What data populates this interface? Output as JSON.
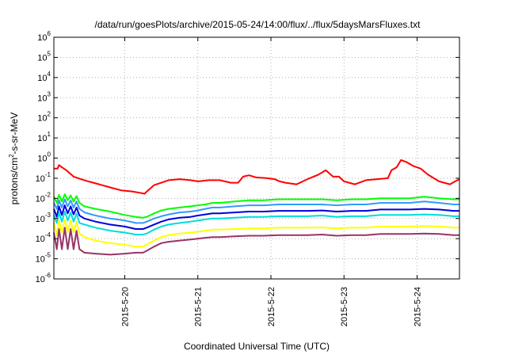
{
  "chart_data": {
    "type": "line",
    "title": "/data/run/goesPlots/archive/2015-05-24/14:00/flux/../flux/5daysMarsFluxes.txt",
    "xlabel": "Coordinated Universal Time (UTC)",
    "ylabel": "protons/cm²-s-sr-MeV",
    "ylabel_parts": {
      "pre": "protons/cm",
      "sup": "2",
      "post": "-s-sr-MeV"
    },
    "yscale": "log",
    "ylim": [
      1e-06,
      1000000.0
    ],
    "yticks": [
      {
        "base": "10",
        "exp": "6"
      },
      {
        "base": "10",
        "exp": "5"
      },
      {
        "base": "10",
        "exp": "4"
      },
      {
        "base": "10",
        "exp": "3"
      },
      {
        "base": "10",
        "exp": "2"
      },
      {
        "base": "10",
        "exp": "1"
      },
      {
        "base": "10",
        "exp": "0"
      },
      {
        "base": "10",
        "exp": "-1"
      },
      {
        "base": "10",
        "exp": "-2"
      },
      {
        "base": "10",
        "exp": "-3"
      },
      {
        "base": "10",
        "exp": "-4"
      },
      {
        "base": "10",
        "exp": "-5"
      },
      {
        "base": "10",
        "exp": "-6"
      }
    ],
    "xlim": [
      -0.97,
      4.58
    ],
    "xticks": [
      {
        "value": 0,
        "label": "2015-5-20"
      },
      {
        "value": 1,
        "label": "2015-5-21"
      },
      {
        "value": 2,
        "label": "2015-5-22"
      },
      {
        "value": 3,
        "label": "2015-5-23"
      },
      {
        "value": 4,
        "label": "2015-5-24"
      }
    ],
    "grid": true,
    "series": [
      {
        "color": "#ff0000",
        "x": [
          -0.97,
          -0.92,
          -0.9,
          -0.86,
          -0.8,
          -0.7,
          -0.6,
          -0.5,
          -0.35,
          -0.2,
          -0.05,
          0.1,
          0.2,
          0.27,
          0.32,
          0.4,
          0.5,
          0.6,
          0.75,
          0.9,
          1.0,
          1.15,
          1.3,
          1.45,
          1.55,
          1.62,
          1.7,
          1.8,
          1.95,
          2.05,
          2.12,
          2.2,
          2.35,
          2.5,
          2.65,
          2.75,
          2.85,
          2.93,
          3.0,
          3.15,
          3.3,
          3.45,
          3.6,
          3.65,
          3.72,
          3.78,
          3.85,
          3.95,
          4.05,
          4.15,
          4.3,
          4.45,
          4.52,
          4.58
        ],
        "y": [
          0.3,
          0.3,
          0.45,
          0.35,
          0.25,
          0.12,
          0.09,
          0.07,
          0.05,
          0.035,
          0.025,
          0.022,
          0.019,
          0.017,
          0.025,
          0.045,
          0.06,
          0.08,
          0.09,
          0.08,
          0.07,
          0.08,
          0.08,
          0.06,
          0.06,
          0.12,
          0.14,
          0.11,
          0.1,
          0.09,
          0.07,
          0.06,
          0.05,
          0.09,
          0.15,
          0.25,
          0.12,
          0.12,
          0.07,
          0.05,
          0.08,
          0.09,
          0.1,
          0.25,
          0.35,
          0.8,
          0.65,
          0.4,
          0.3,
          0.15,
          0.07,
          0.05,
          0.07,
          0.09
        ]
      },
      {
        "color": "#00ff00",
        "x": [
          -0.97,
          -0.93,
          -0.9,
          -0.86,
          -0.82,
          -0.78,
          -0.74,
          -0.7,
          -0.66,
          -0.62,
          -0.55,
          -0.4,
          -0.2,
          0.0,
          0.15,
          0.25,
          0.3,
          0.4,
          0.5,
          0.6,
          0.75,
          0.9,
          1.0,
          1.1,
          1.2,
          1.3,
          1.5,
          1.7,
          1.9,
          2.1,
          2.3,
          2.5,
          2.7,
          2.9,
          3.1,
          3.3,
          3.5,
          3.7,
          3.9,
          4.1,
          4.3,
          4.5,
          4.58
        ],
        "y": [
          0.012,
          0.006,
          0.015,
          0.007,
          0.016,
          0.008,
          0.014,
          0.007,
          0.013,
          0.006,
          0.004,
          0.003,
          0.0022,
          0.0015,
          0.0012,
          0.0011,
          0.0012,
          0.0018,
          0.0025,
          0.003,
          0.0035,
          0.004,
          0.0045,
          0.005,
          0.006,
          0.006,
          0.007,
          0.008,
          0.008,
          0.009,
          0.009,
          0.009,
          0.009,
          0.008,
          0.009,
          0.009,
          0.01,
          0.01,
          0.01,
          0.012,
          0.01,
          0.009,
          0.009
        ]
      },
      {
        "color": "#3399ff",
        "x": [
          -0.97,
          -0.93,
          -0.9,
          -0.86,
          -0.82,
          -0.78,
          -0.74,
          -0.7,
          -0.66,
          -0.62,
          -0.55,
          -0.4,
          -0.2,
          0.0,
          0.15,
          0.25,
          0.3,
          0.4,
          0.5,
          0.6,
          0.75,
          0.9,
          1.0,
          1.1,
          1.2,
          1.3,
          1.5,
          1.7,
          1.9,
          2.1,
          2.3,
          2.5,
          2.7,
          2.9,
          3.1,
          3.3,
          3.5,
          3.7,
          3.9,
          4.1,
          4.3,
          4.5,
          4.58
        ],
        "y": [
          0.006,
          0.003,
          0.008,
          0.0035,
          0.009,
          0.004,
          0.008,
          0.0035,
          0.007,
          0.003,
          0.002,
          0.0014,
          0.001,
          0.0008,
          0.0006,
          0.0006,
          0.0007,
          0.001,
          0.0013,
          0.0016,
          0.002,
          0.0022,
          0.0025,
          0.003,
          0.0035,
          0.0035,
          0.004,
          0.0045,
          0.0045,
          0.005,
          0.005,
          0.005,
          0.005,
          0.0045,
          0.005,
          0.005,
          0.006,
          0.006,
          0.006,
          0.007,
          0.006,
          0.005,
          0.005
        ]
      },
      {
        "color": "#0000dd",
        "x": [
          -0.97,
          -0.93,
          -0.9,
          -0.86,
          -0.82,
          -0.78,
          -0.74,
          -0.7,
          -0.66,
          -0.62,
          -0.55,
          -0.4,
          -0.2,
          0.0,
          0.15,
          0.25,
          0.3,
          0.4,
          0.5,
          0.6,
          0.75,
          0.9,
          1.0,
          1.1,
          1.2,
          1.3,
          1.5,
          1.7,
          1.9,
          2.1,
          2.3,
          2.5,
          2.7,
          2.9,
          3.1,
          3.3,
          3.5,
          3.7,
          3.9,
          4.1,
          4.3,
          4.5,
          4.58
        ],
        "y": [
          0.003,
          0.0012,
          0.004,
          0.0015,
          0.0045,
          0.0018,
          0.004,
          0.0016,
          0.0035,
          0.0014,
          0.001,
          0.0007,
          0.0005,
          0.0004,
          0.0003,
          0.0003,
          0.00035,
          0.0005,
          0.0007,
          0.0009,
          0.0011,
          0.0012,
          0.0014,
          0.0016,
          0.0018,
          0.0018,
          0.002,
          0.0022,
          0.0022,
          0.0024,
          0.0024,
          0.0024,
          0.0025,
          0.0022,
          0.0024,
          0.0024,
          0.0028,
          0.0028,
          0.0028,
          0.003,
          0.0028,
          0.0024,
          0.0024
        ]
      },
      {
        "color": "#00dddd",
        "x": [
          -0.97,
          -0.93,
          -0.9,
          -0.86,
          -0.82,
          -0.78,
          -0.74,
          -0.7,
          -0.66,
          -0.62,
          -0.55,
          -0.4,
          -0.2,
          0.0,
          0.15,
          0.25,
          0.3,
          0.4,
          0.5,
          0.6,
          0.75,
          0.9,
          1.0,
          1.1,
          1.2,
          1.3,
          1.5,
          1.7,
          1.9,
          2.1,
          2.3,
          2.5,
          2.7,
          2.9,
          3.1,
          3.3,
          3.5,
          3.7,
          3.9,
          4.1,
          4.3,
          4.5,
          4.58
        ],
        "y": [
          0.0015,
          0.0006,
          0.002,
          0.0007,
          0.0022,
          0.0008,
          0.002,
          0.0007,
          0.0018,
          0.0006,
          0.0005,
          0.00035,
          0.00025,
          0.0002,
          0.00016,
          0.00016,
          0.00018,
          0.00028,
          0.0004,
          0.0005,
          0.0006,
          0.0007,
          0.0008,
          0.0009,
          0.001,
          0.001,
          0.0011,
          0.0012,
          0.0012,
          0.0013,
          0.0013,
          0.0013,
          0.0014,
          0.0012,
          0.0013,
          0.0013,
          0.0015,
          0.0015,
          0.0015,
          0.0016,
          0.0015,
          0.0013,
          0.0013
        ]
      },
      {
        "color": "#ffff00",
        "x": [
          -0.97,
          -0.93,
          -0.9,
          -0.86,
          -0.82,
          -0.78,
          -0.74,
          -0.7,
          -0.66,
          -0.62,
          -0.55,
          -0.4,
          -0.2,
          0.0,
          0.15,
          0.25,
          0.3,
          0.4,
          0.5,
          0.6,
          0.75,
          0.9,
          1.0,
          1.1,
          1.2,
          1.3,
          1.5,
          1.7,
          1.9,
          2.1,
          2.3,
          2.5,
          2.7,
          2.9,
          3.1,
          3.3,
          3.5,
          3.7,
          3.9,
          4.1,
          4.3,
          4.5,
          4.58
        ],
        "y": [
          0.0006,
          0.00015,
          0.0008,
          0.0002,
          0.0009,
          0.00022,
          0.0008,
          0.0002,
          0.0007,
          0.00018,
          0.00012,
          8e-05,
          6e-05,
          5e-05,
          4e-05,
          4e-05,
          5e-05,
          8e-05,
          0.00012,
          0.00015,
          0.00018,
          0.0002,
          0.00022,
          0.00025,
          0.00028,
          0.00028,
          0.0003,
          0.00032,
          0.00032,
          0.00035,
          0.00035,
          0.00035,
          0.00036,
          0.00032,
          0.00035,
          0.00035,
          0.0004,
          0.0004,
          0.0004,
          0.00042,
          0.0004,
          0.00035,
          0.00035
        ]
      },
      {
        "color": "#993366",
        "x": [
          -0.97,
          -0.93,
          -0.9,
          -0.86,
          -0.82,
          -0.78,
          -0.74,
          -0.7,
          -0.66,
          -0.62,
          -0.55,
          -0.4,
          -0.2,
          0.0,
          0.15,
          0.25,
          0.3,
          0.4,
          0.5,
          0.6,
          0.75,
          0.9,
          1.0,
          1.1,
          1.2,
          1.3,
          1.5,
          1.7,
          1.9,
          2.1,
          2.3,
          2.5,
          2.7,
          2.9,
          3.1,
          3.3,
          3.5,
          3.7,
          3.9,
          4.1,
          4.3,
          4.5,
          4.58
        ],
        "y": [
          0.0002,
          3e-05,
          0.0003,
          3e-05,
          0.00035,
          3e-05,
          0.0003,
          3e-05,
          0.00025,
          3e-05,
          2e-05,
          1.8e-05,
          1.6e-05,
          1.8e-05,
          2e-05,
          2e-05,
          2.5e-05,
          4e-05,
          6e-05,
          7e-05,
          8e-05,
          9e-05,
          0.0001,
          0.00011,
          0.00012,
          0.00012,
          0.00013,
          0.00014,
          0.00014,
          0.00015,
          0.00015,
          0.00015,
          0.00016,
          0.00014,
          0.00015,
          0.00015,
          0.00017,
          0.00017,
          0.00017,
          0.00018,
          0.00017,
          0.00015,
          0.00015
        ]
      }
    ]
  }
}
